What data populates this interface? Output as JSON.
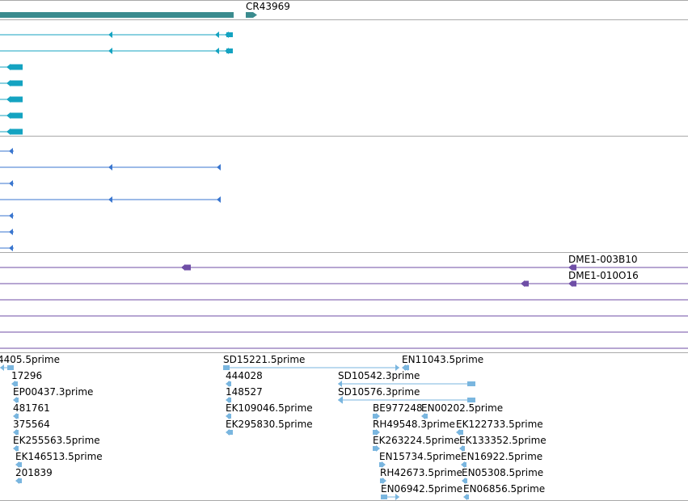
{
  "colors": {
    "separator": "#a9a9a9",
    "gene_ncrna": "#3a8b8e",
    "mrna": "#14a3c1",
    "transcript": "#3a76cf",
    "clone": "#6f4ea6",
    "est": "#7ab6df",
    "label": "#000000"
  },
  "tracks": {
    "genes": [
      {
        "label": "CR43969",
        "strand": "+"
      }
    ],
    "clones": [
      {
        "label": "DME1-003B10",
        "strand": "-"
      },
      {
        "label": "DME1-010O16",
        "strand": "-"
      }
    ],
    "ests": [
      {
        "label": "4405.5prime"
      },
      {
        "label": "17296"
      },
      {
        "label": "EP00437.3prime"
      },
      {
        "label": "481761"
      },
      {
        "label": "375564"
      },
      {
        "label": "EK255563.5prime"
      },
      {
        "label": "EK146513.5prime"
      },
      {
        "label": "201839"
      },
      {
        "label": "SD15221.5prime"
      },
      {
        "label": "444028"
      },
      {
        "label": "148527"
      },
      {
        "label": "EK109046.5prime"
      },
      {
        "label": "EK295830.5prime"
      },
      {
        "label": "EN11043.5prime"
      },
      {
        "label": "SD10542.3prime"
      },
      {
        "label": "SD10576.3prime"
      },
      {
        "label": "BE977248"
      },
      {
        "label": "EN00202.5prime"
      },
      {
        "label": "RH49548.3prime"
      },
      {
        "label": "EK122733.5prime"
      },
      {
        "label": "EK263224.5prime"
      },
      {
        "label": "EK133352.5prime"
      },
      {
        "label": "EN15734.5prime"
      },
      {
        "label": "EN16922.5prime"
      },
      {
        "label": "RH42673.5prime"
      },
      {
        "label": "EN05308.5prime"
      },
      {
        "label": "EN06942.5prime"
      },
      {
        "label": "EN06856.5prime"
      }
    ]
  }
}
